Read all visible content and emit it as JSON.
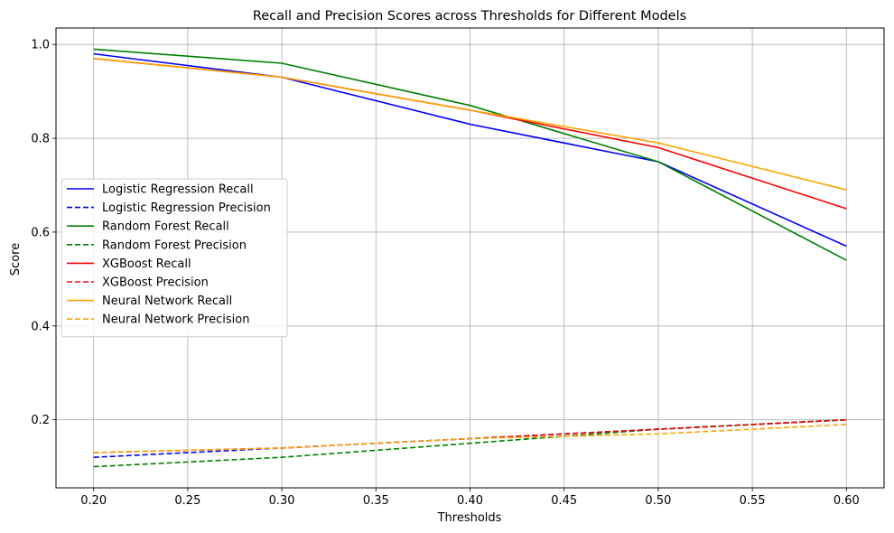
{
  "chart_data": {
    "type": "line",
    "title": "Recall and Precision Scores across Thresholds for Different Models",
    "xlabel": "Thresholds",
    "ylabel": "Score",
    "x": [
      0.2,
      0.3,
      0.4,
      0.5,
      0.6
    ],
    "xlim": [
      0.18,
      0.62
    ],
    "ylim": [
      0.055,
      1.035
    ],
    "xticks": [
      0.2,
      0.25,
      0.3,
      0.35,
      0.4,
      0.45,
      0.5,
      0.55,
      0.6
    ],
    "xtick_labels": [
      "0.20",
      "0.25",
      "0.30",
      "0.35",
      "0.40",
      "0.45",
      "0.50",
      "0.55",
      "0.60"
    ],
    "yticks": [
      0.2,
      0.4,
      0.6,
      0.8,
      1.0
    ],
    "ytick_labels": [
      "0.2",
      "0.4",
      "0.6",
      "0.8",
      "1.0"
    ],
    "grid": true,
    "legend_position": "center-left",
    "series": [
      {
        "name": "Logistic Regression Recall",
        "color": "#0000ff",
        "style": "solid",
        "values": [
          0.98,
          0.93,
          0.83,
          0.75,
          0.57
        ]
      },
      {
        "name": "Logistic Regression Precision",
        "color": "#0000ff",
        "style": "dashed",
        "values": [
          0.12,
          0.14,
          0.16,
          0.18,
          0.2
        ]
      },
      {
        "name": "Random Forest Recall",
        "color": "#008000",
        "style": "solid",
        "values": [
          0.99,
          0.96,
          0.87,
          0.75,
          0.54
        ]
      },
      {
        "name": "Random Forest Precision",
        "color": "#008000",
        "style": "dashed",
        "values": [
          0.1,
          0.12,
          0.15,
          0.18,
          0.2
        ]
      },
      {
        "name": "XGBoost Recall",
        "color": "#ff0000",
        "style": "solid",
        "values": [
          0.97,
          0.93,
          0.86,
          0.78,
          0.65
        ]
      },
      {
        "name": "XGBoost Precision",
        "color": "#ff0000",
        "style": "dashed",
        "values": [
          0.13,
          0.14,
          0.16,
          0.18,
          0.2
        ]
      },
      {
        "name": "Neural Network Recall",
        "color": "#ffa500",
        "style": "solid",
        "values": [
          0.97,
          0.93,
          0.86,
          0.79,
          0.69
        ]
      },
      {
        "name": "Neural Network Precision",
        "color": "#ffa500",
        "style": "dashed",
        "values": [
          0.13,
          0.14,
          0.16,
          0.17,
          0.19
        ]
      }
    ]
  }
}
